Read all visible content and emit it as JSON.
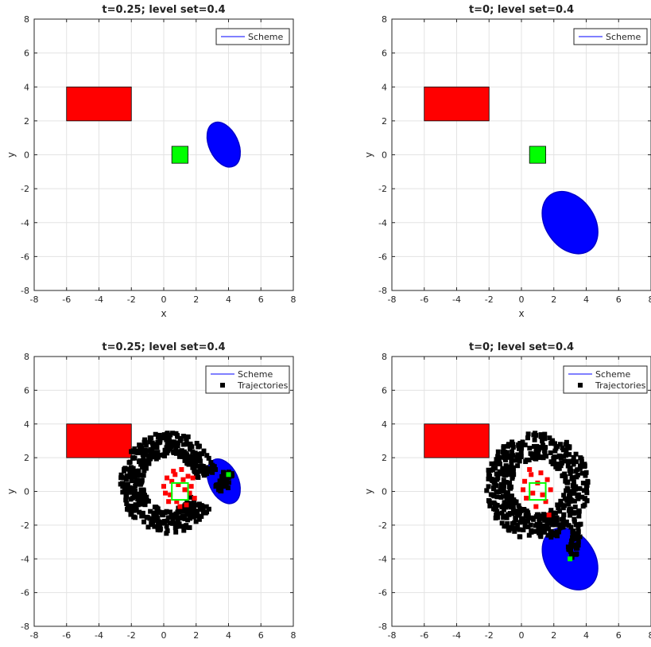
{
  "chart_data": [
    {
      "type": "scatter",
      "title": "t=0.25; level set=0.4",
      "xlabel": "x",
      "ylabel": "y",
      "xlim": [
        -8,
        8
      ],
      "ylim": [
        -8,
        8
      ],
      "xticks": [
        "-8",
        "-6",
        "-4",
        "-2",
        "0",
        "2",
        "4",
        "6",
        "8"
      ],
      "yticks": [
        "-8",
        "-6",
        "-4",
        "-2",
        "0",
        "2",
        "4",
        "6",
        "8"
      ],
      "grid": true,
      "legend": {
        "placement": "top-right",
        "entries": [
          "Scheme"
        ]
      },
      "obstacle": {
        "x": [
          -6,
          -2
        ],
        "y": [
          2,
          4
        ],
        "color": "#ff0000"
      },
      "target": {
        "x": [
          0.5,
          1.5
        ],
        "y": [
          -0.5,
          0.5
        ],
        "color": "#00ff00",
        "style": "filled"
      },
      "reach_set": {
        "center": [
          3.7,
          0.6
        ],
        "axes": [
          0.9,
          1.4
        ],
        "angle_deg": 25,
        "color": "#0000ff"
      },
      "trajectories": null
    },
    {
      "type": "scatter",
      "title": "t=0; level set=0.4",
      "xlabel": "x",
      "ylabel": "y",
      "xlim": [
        -8,
        8
      ],
      "ylim": [
        -8,
        8
      ],
      "xticks": [
        "-8",
        "-6",
        "-4",
        "-2",
        "0",
        "2",
        "4",
        "6",
        "8"
      ],
      "yticks": [
        "-8",
        "-6",
        "-4",
        "-2",
        "0",
        "2",
        "4",
        "6",
        "8"
      ],
      "grid": true,
      "legend": {
        "placement": "top-right",
        "entries": [
          "Scheme"
        ]
      },
      "obstacle": {
        "x": [
          -6,
          -2
        ],
        "y": [
          2,
          4
        ],
        "color": "#ff0000"
      },
      "target": {
        "x": [
          0.5,
          1.5
        ],
        "y": [
          -0.5,
          0.5
        ],
        "color": "#00ff00",
        "style": "filled"
      },
      "reach_set": {
        "center": [
          3.0,
          -4.0
        ],
        "axes": [
          1.5,
          2.0
        ],
        "angle_deg": 35,
        "color": "#0000ff"
      },
      "trajectories": null
    },
    {
      "type": "scatter",
      "title": "t=0.25; level set=0.4",
      "xlabel": "",
      "ylabel": "y",
      "xlim": [
        -8,
        8
      ],
      "ylim": [
        -8,
        8
      ],
      "xticks": [
        "-8",
        "-6",
        "-4",
        "-2",
        "0",
        "2",
        "4",
        "6",
        "8"
      ],
      "yticks": [
        "-8",
        "-6",
        "-4",
        "-2",
        "0",
        "2",
        "4",
        "6",
        "8"
      ],
      "grid": true,
      "legend": {
        "placement": "top-right",
        "entries": [
          "Scheme",
          "Trajectories"
        ]
      },
      "obstacle": {
        "x": [
          -6,
          -2
        ],
        "y": [
          2,
          4
        ],
        "color": "#ff0000"
      },
      "target": {
        "x": [
          0.5,
          1.5
        ],
        "y": [
          -0.5,
          0.5
        ],
        "color": "#00ff00",
        "style": "outline"
      },
      "reach_set": {
        "center": [
          3.7,
          0.6
        ],
        "axes": [
          0.9,
          1.4
        ],
        "angle_deg": 25,
        "color": "#0000ff"
      },
      "trajectories": {
        "marker_color": "#000000",
        "start": [
          4.0,
          1.0
        ],
        "arc_center": [
          0.3,
          0.5
        ],
        "radius_range": [
          1.6,
          3.0
        ],
        "angle_range_deg": [
          10,
          330
        ],
        "red_points": [
          [
            0.2,
            0.8
          ],
          [
            0.6,
            1.2
          ],
          [
            1.1,
            1.3
          ],
          [
            1.5,
            0.9
          ],
          [
            1.7,
            0.3
          ],
          [
            1.9,
            -0.4
          ],
          [
            1.4,
            -0.8
          ],
          [
            0.8,
            -0.6
          ],
          [
            0.4,
            -0.2
          ],
          [
            0.0,
            0.3
          ],
          [
            0.9,
            0.4
          ],
          [
            1.3,
            0.1
          ],
          [
            0.5,
            0.6
          ],
          [
            1.6,
            -0.1
          ],
          [
            0.3,
            -0.6
          ],
          [
            1.0,
            -0.9
          ],
          [
            1.8,
            0.8
          ],
          [
            0.7,
            1.0
          ],
          [
            1.2,
            0.7
          ],
          [
            0.1,
            -0.1
          ]
        ]
      }
    },
    {
      "type": "scatter",
      "title": "t=0; level set=0.4",
      "xlabel": "",
      "ylabel": "y",
      "xlim": [
        -8,
        8
      ],
      "ylim": [
        -8,
        8
      ],
      "xticks": [
        "-8",
        "-6",
        "-4",
        "-2",
        "0",
        "2",
        "4",
        "6",
        "8"
      ],
      "yticks": [
        "-8",
        "-6",
        "-4",
        "-2",
        "0",
        "2",
        "4",
        "6",
        "8"
      ],
      "grid": true,
      "legend": {
        "placement": "top-right",
        "entries": [
          "Scheme",
          "Trajectories"
        ]
      },
      "obstacle": {
        "x": [
          -6,
          -2
        ],
        "y": [
          2,
          4
        ],
        "color": "#ff0000"
      },
      "target": {
        "x": [
          0.5,
          1.5
        ],
        "y": [
          -0.5,
          0.5
        ],
        "color": "#00ff00",
        "style": "outline"
      },
      "reach_set": {
        "center": [
          3.0,
          -4.0
        ],
        "axes": [
          1.5,
          2.0
        ],
        "angle_deg": 35,
        "color": "#0000ff"
      },
      "trajectories": {
        "marker_color": "#000000",
        "start": [
          3.0,
          -4.0
        ],
        "arc_center": [
          1.0,
          0.3
        ],
        "radius_range": [
          1.6,
          3.2
        ],
        "angle_range_deg": [
          -80,
          300
        ],
        "red_points": [
          [
            0.2,
            0.6
          ],
          [
            0.6,
            1.0
          ],
          [
            1.2,
            1.1
          ],
          [
            1.6,
            0.7
          ],
          [
            1.8,
            0.1
          ],
          [
            1.5,
            -0.6
          ],
          [
            0.9,
            -0.9
          ],
          [
            0.3,
            -0.4
          ],
          [
            1.0,
            0.5
          ],
          [
            1.3,
            -0.2
          ],
          [
            0.7,
            -0.1
          ],
          [
            0.1,
            0.1
          ],
          [
            1.7,
            -1.4
          ],
          [
            0.5,
            1.3
          ]
        ]
      }
    }
  ]
}
